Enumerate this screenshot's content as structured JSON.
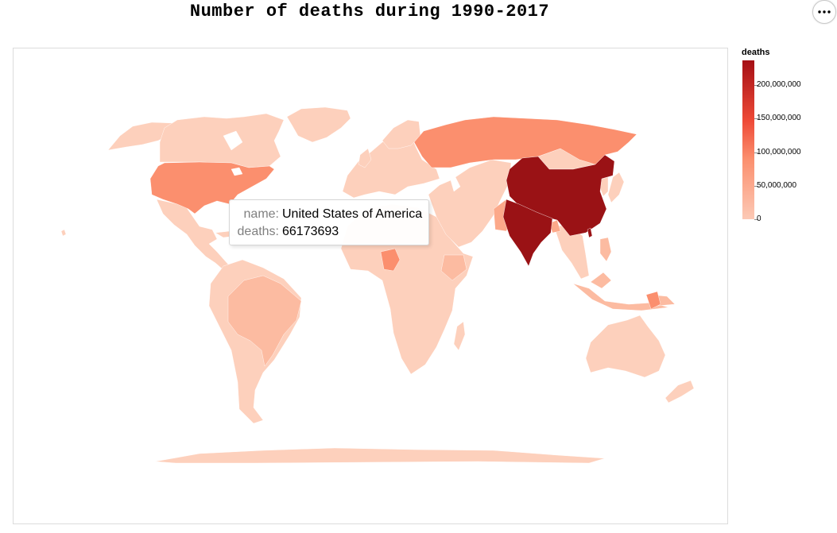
{
  "title": "Number of deaths during 1990-2017",
  "menu": {
    "icon": "ellipsis-icon"
  },
  "colors": {
    "very_low": "#fdd0bc",
    "low": "#fcbba1",
    "mid_low": "#fca98a",
    "mid": "#fb8f6e",
    "high": "#9a1215",
    "lake": "#ffffff"
  },
  "legend": {
    "title": "deaths",
    "labels": [
      "200,000,000",
      "150,000,000",
      "100,000,000",
      "50,000,000",
      "0"
    ],
    "domain": [
      0,
      237000000
    ]
  },
  "tooltip": {
    "name_key": "name:",
    "name_value": "United States of America",
    "deaths_key": "deaths:",
    "deaths_value": "66173693"
  },
  "chart_data": {
    "type": "choropleth",
    "title": "Number of deaths during 1990-2017",
    "measure": "deaths",
    "highlighted": {
      "name": "United States of America",
      "deaths": 66173693
    }
  }
}
